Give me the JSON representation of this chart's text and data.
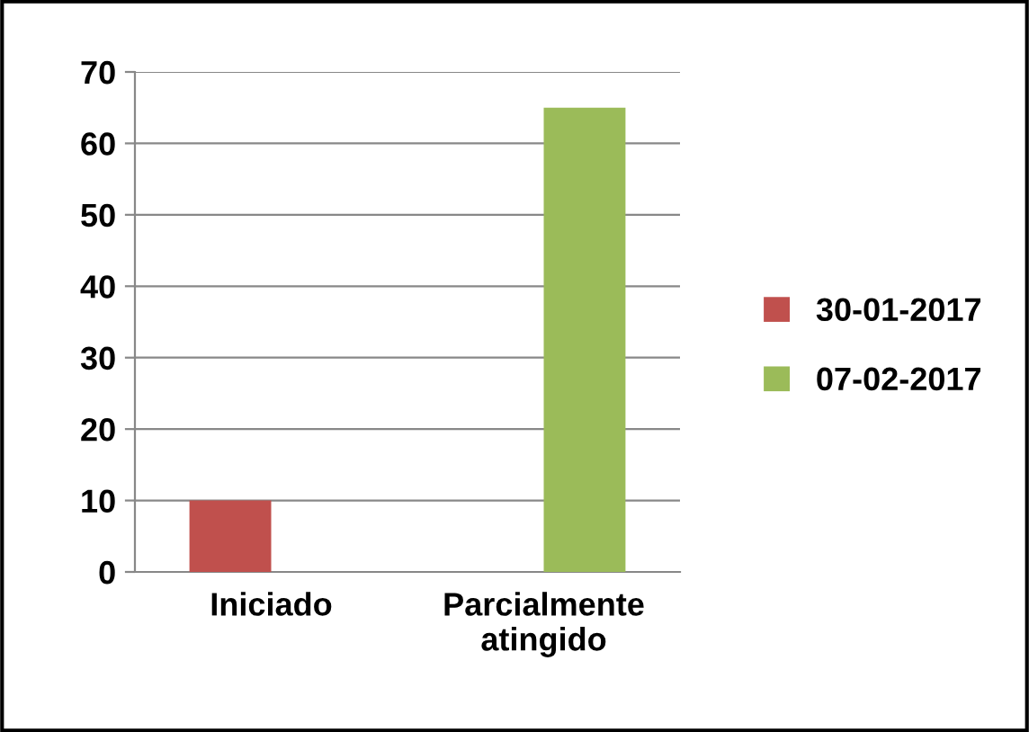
{
  "chart_data": {
    "type": "bar",
    "categories": [
      "Iniciado",
      "Parcialmente\natingido"
    ],
    "series": [
      {
        "name": "30-01-2017",
        "color": "#c0504d",
        "values": [
          10,
          null
        ]
      },
      {
        "name": "07-02-2017",
        "color": "#9bbb59",
        "values": [
          null,
          65
        ]
      }
    ],
    "ylim": [
      0,
      70
    ],
    "yticks": [
      0,
      10,
      20,
      30,
      40,
      50,
      60,
      70
    ],
    "grid": "y",
    "legend": "right"
  }
}
